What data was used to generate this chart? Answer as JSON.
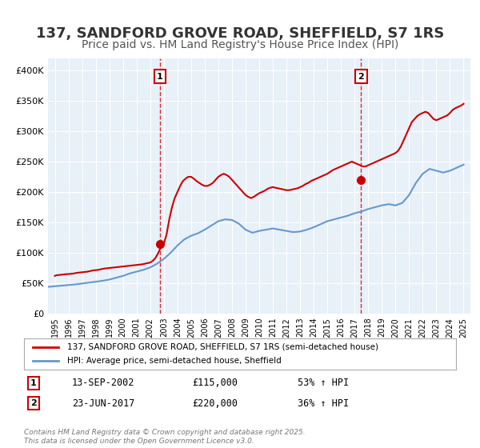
{
  "title": "137, SANDFORD GROVE ROAD, SHEFFIELD, S7 1RS",
  "subtitle": "Price paid vs. HM Land Registry's House Price Index (HPI)",
  "title_fontsize": 13,
  "subtitle_fontsize": 10,
  "background_color": "#ffffff",
  "plot_bg_color": "#e8f0f8",
  "grid_color": "#ffffff",
  "legend_label_red": "137, SANDFORD GROVE ROAD, SHEFFIELD, S7 1RS (semi-detached house)",
  "legend_label_blue": "HPI: Average price, semi-detached house, Sheffield",
  "red_color": "#cc0000",
  "blue_color": "#6699cc",
  "marker1_date_x": 2002.71,
  "marker1_y": 115000,
  "marker1_label": "1",
  "marker1_info": "13-SEP-2002    £115,000    53% ↑ HPI",
  "marker2_date_x": 2017.48,
  "marker2_y": 220000,
  "marker2_label": "2",
  "marker2_info": "23-JUN-2017    £220,000    36% ↑ HPI",
  "footer": "Contains HM Land Registry data © Crown copyright and database right 2025.\nThis data is licensed under the Open Government Licence v3.0.",
  "ylim": [
    0,
    420000
  ],
  "xlim_start": 1994.5,
  "xlim_end": 2025.5,
  "yticks": [
    0,
    50000,
    100000,
    150000,
    200000,
    250000,
    300000,
    350000,
    400000
  ],
  "ytick_labels": [
    "£0",
    "£50K",
    "£100K",
    "£150K",
    "£200K",
    "£250K",
    "£300K",
    "£350K",
    "£400K"
  ],
  "xticks": [
    1995,
    1996,
    1997,
    1998,
    1999,
    2000,
    2001,
    2002,
    2003,
    2004,
    2005,
    2006,
    2007,
    2008,
    2009,
    2010,
    2011,
    2012,
    2013,
    2014,
    2015,
    2016,
    2017,
    2018,
    2019,
    2020,
    2021,
    2022,
    2023,
    2024,
    2025
  ],
  "hpi_data": {
    "x": [
      1994.5,
      1995.0,
      1995.5,
      1996.0,
      1996.5,
      1997.0,
      1997.5,
      1998.0,
      1998.5,
      1999.0,
      1999.5,
      2000.0,
      2000.5,
      2001.0,
      2001.5,
      2002.0,
      2002.5,
      2003.0,
      2003.5,
      2004.0,
      2004.5,
      2005.0,
      2005.5,
      2006.0,
      2006.5,
      2007.0,
      2007.5,
      2008.0,
      2008.5,
      2009.0,
      2009.5,
      2010.0,
      2010.5,
      2011.0,
      2011.5,
      2012.0,
      2012.5,
      2013.0,
      2013.5,
      2014.0,
      2014.5,
      2015.0,
      2015.5,
      2016.0,
      2016.5,
      2017.0,
      2017.5,
      2018.0,
      2018.5,
      2019.0,
      2019.5,
      2020.0,
      2020.5,
      2021.0,
      2021.5,
      2022.0,
      2022.5,
      2023.0,
      2023.5,
      2024.0,
      2024.5,
      2025.0
    ],
    "y": [
      44000,
      45000,
      46000,
      47000,
      48000,
      49500,
      51000,
      52500,
      54000,
      56000,
      59000,
      62000,
      66000,
      69000,
      72000,
      76000,
      82000,
      90000,
      100000,
      112000,
      122000,
      128000,
      132000,
      138000,
      145000,
      152000,
      155000,
      154000,
      148000,
      138000,
      133000,
      136000,
      138000,
      140000,
      138000,
      136000,
      134000,
      135000,
      138000,
      142000,
      147000,
      152000,
      155000,
      158000,
      161000,
      165000,
      168000,
      172000,
      175000,
      178000,
      180000,
      178000,
      182000,
      195000,
      215000,
      230000,
      238000,
      235000,
      232000,
      235000,
      240000,
      245000
    ]
  },
  "red_data": {
    "x": [
      1995.0,
      1995.1,
      1995.3,
      1995.5,
      1995.7,
      1995.9,
      1996.0,
      1996.2,
      1996.4,
      1996.6,
      1996.8,
      1997.0,
      1997.2,
      1997.4,
      1997.6,
      1997.8,
      1998.0,
      1998.2,
      1998.4,
      1998.6,
      1998.8,
      1999.0,
      1999.2,
      1999.4,
      1999.6,
      1999.8,
      2000.0,
      2000.2,
      2000.4,
      2000.6,
      2000.8,
      2001.0,
      2001.2,
      2001.4,
      2001.6,
      2001.8,
      2002.0,
      2002.2,
      2002.4,
      2002.6,
      2002.8,
      2003.0,
      2003.2,
      2003.4,
      2003.6,
      2003.8,
      2004.0,
      2004.2,
      2004.4,
      2004.6,
      2004.8,
      2005.0,
      2005.2,
      2005.4,
      2005.6,
      2005.8,
      2006.0,
      2006.2,
      2006.4,
      2006.6,
      2006.8,
      2007.0,
      2007.2,
      2007.4,
      2007.6,
      2007.8,
      2008.0,
      2008.2,
      2008.4,
      2008.6,
      2008.8,
      2009.0,
      2009.2,
      2009.4,
      2009.6,
      2009.8,
      2010.0,
      2010.2,
      2010.4,
      2010.6,
      2010.8,
      2011.0,
      2011.2,
      2011.4,
      2011.6,
      2011.8,
      2012.0,
      2012.2,
      2012.4,
      2012.6,
      2012.8,
      2013.0,
      2013.2,
      2013.4,
      2013.6,
      2013.8,
      2014.0,
      2014.2,
      2014.4,
      2014.6,
      2014.8,
      2015.0,
      2015.2,
      2015.4,
      2015.6,
      2015.8,
      2016.0,
      2016.2,
      2016.4,
      2016.6,
      2016.8,
      2017.0,
      2017.2,
      2017.4,
      2017.6,
      2017.8,
      2018.0,
      2018.2,
      2018.4,
      2018.6,
      2018.8,
      2019.0,
      2019.2,
      2019.4,
      2019.6,
      2019.8,
      2020.0,
      2020.2,
      2020.4,
      2020.6,
      2020.8,
      2021.0,
      2021.2,
      2021.4,
      2021.6,
      2021.8,
      2022.0,
      2022.2,
      2022.4,
      2022.6,
      2022.8,
      2023.0,
      2023.2,
      2023.4,
      2023.6,
      2023.8,
      2024.0,
      2024.2,
      2024.4,
      2024.6,
      2024.8,
      2025.0
    ],
    "y": [
      62000,
      63000,
      63500,
      64000,
      64500,
      65000,
      65000,
      65500,
      66000,
      67000,
      67500,
      68000,
      68500,
      69000,
      70000,
      71000,
      71500,
      72000,
      73000,
      74000,
      74500,
      75000,
      75500,
      76000,
      76500,
      77000,
      77500,
      78000,
      78500,
      79000,
      79500,
      80000,
      80500,
      81000,
      82000,
      83000,
      84000,
      87000,
      92000,
      100000,
      110000,
      115000,
      130000,
      155000,
      175000,
      190000,
      200000,
      210000,
      218000,
      222000,
      225000,
      225000,
      222000,
      218000,
      215000,
      212000,
      210000,
      210000,
      212000,
      215000,
      220000,
      225000,
      228000,
      230000,
      228000,
      225000,
      220000,
      215000,
      210000,
      205000,
      200000,
      195000,
      192000,
      190000,
      192000,
      195000,
      198000,
      200000,
      202000,
      205000,
      207000,
      208000,
      207000,
      206000,
      205000,
      204000,
      203000,
      203000,
      204000,
      205000,
      206000,
      208000,
      210000,
      213000,
      215000,
      218000,
      220000,
      222000,
      224000,
      226000,
      228000,
      230000,
      233000,
      236000,
      238000,
      240000,
      242000,
      244000,
      246000,
      248000,
      250000,
      248000,
      246000,
      244000,
      242000,
      242000,
      244000,
      246000,
      248000,
      250000,
      252000,
      254000,
      256000,
      258000,
      260000,
      262000,
      264000,
      268000,
      275000,
      285000,
      295000,
      305000,
      315000,
      320000,
      325000,
      328000,
      330000,
      332000,
      330000,
      325000,
      320000,
      318000,
      320000,
      322000,
      324000,
      326000,
      330000,
      335000,
      338000,
      340000,
      342000,
      345000
    ]
  }
}
